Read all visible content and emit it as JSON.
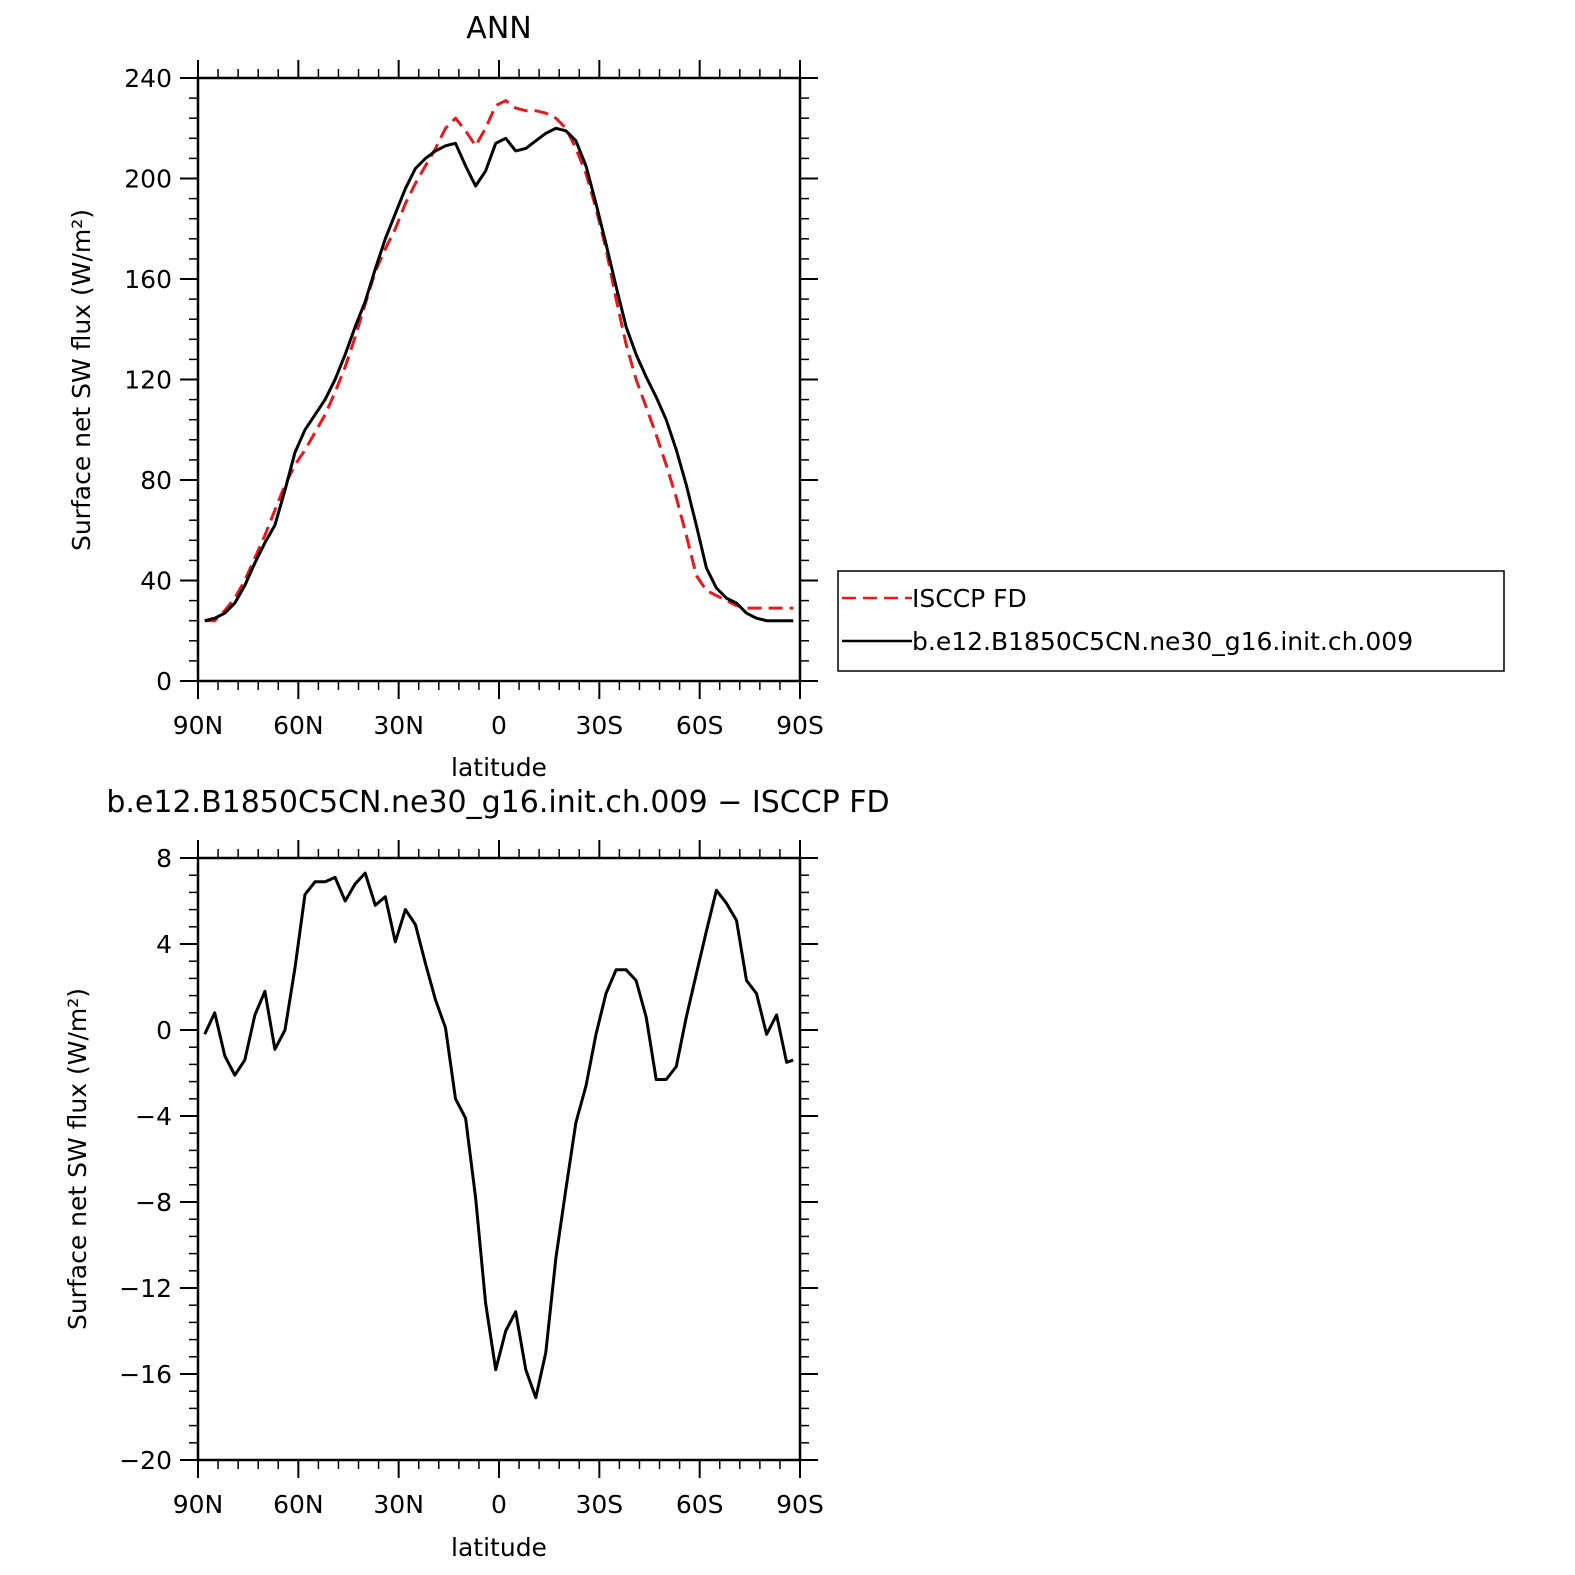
{
  "chart_data": [
    {
      "type": "line",
      "title": "ANN",
      "xlabel": "latitude",
      "ylabel": "Surface net SW flux (W/m²)",
      "xlim": [
        -90,
        90
      ],
      "ylim": [
        0,
        240
      ],
      "xticks": [
        -90,
        -60,
        -30,
        0,
        30,
        60,
        90
      ],
      "xtick_labels": [
        "90N",
        "60N",
        "30N",
        "0",
        "30S",
        "60S",
        "90S"
      ],
      "yticks": [
        0,
        40,
        80,
        120,
        160,
        200,
        240
      ],
      "ytick_labels": [
        "0",
        "40",
        "80",
        "120",
        "160",
        "200",
        "240"
      ],
      "legend_placement": "right",
      "grid": false,
      "x": [
        -88,
        -85,
        -82,
        -79,
        -76,
        -73,
        -70,
        -67,
        -64,
        -61,
        -58,
        -55,
        -52,
        -49,
        -46,
        -43,
        -40,
        -37,
        -34,
        -31,
        -28,
        -25,
        -22,
        -19,
        -16,
        -13,
        -10,
        -7,
        -4,
        -1,
        2,
        5,
        8,
        11,
        14,
        17,
        20,
        23,
        26,
        29,
        32,
        35,
        38,
        41,
        44,
        47,
        50,
        53,
        56,
        59,
        62,
        65,
        68,
        71,
        74,
        77,
        80,
        83,
        86,
        88
      ],
      "series": [
        {
          "name": "ISCCP FD",
          "color": "#e41a1c",
          "dash": "dashed",
          "values": [
            24,
            24,
            28,
            33,
            40,
            49,
            58,
            68,
            78,
            86,
            92,
            99,
            106,
            115,
            125,
            137,
            150,
            163,
            172,
            180,
            190,
            198,
            205,
            212,
            220,
            224,
            219,
            213,
            220,
            229,
            231,
            228,
            227,
            227,
            226,
            224,
            220,
            212,
            202,
            188,
            172,
            152,
            134,
            120,
            109,
            98,
            86,
            73,
            58,
            42,
            36,
            34,
            32,
            30,
            29,
            29,
            29,
            29,
            29,
            29
          ]
        },
        {
          "name": "b.e12.B1850C5CN.ne30_g16.init.ch.009",
          "color": "#000000",
          "dash": "solid",
          "values": [
            24,
            25,
            27,
            31,
            38,
            47,
            55,
            62,
            76,
            91,
            100,
            106,
            112,
            120,
            130,
            141,
            151,
            164,
            176,
            186,
            196,
            204,
            208,
            211,
            213,
            214,
            205,
            197,
            203,
            214,
            216,
            211,
            212,
            215,
            218,
            220,
            219,
            215,
            205,
            190,
            174,
            157,
            141,
            130,
            121,
            113,
            104,
            92,
            78,
            62,
            45,
            37,
            33,
            31,
            27,
            25,
            24,
            24,
            24,
            24
          ]
        }
      ]
    },
    {
      "type": "line",
      "title": "b.e12.B1850C5CN.ne30_g16.init.ch.009 − ISCCP FD",
      "xlabel": "latitude",
      "ylabel": "Surface net SW flux (W/m²)",
      "xlim": [
        -90,
        90
      ],
      "ylim": [
        -20,
        8
      ],
      "xticks": [
        -90,
        -60,
        -30,
        0,
        30,
        60,
        90
      ],
      "xtick_labels": [
        "90N",
        "60N",
        "30N",
        "0",
        "30S",
        "60S",
        "90S"
      ],
      "yticks": [
        -20,
        -16,
        -12,
        -8,
        -4,
        0,
        4,
        8
      ],
      "ytick_labels": [
        "−20",
        "−16",
        "−12",
        "−8",
        "−4",
        "0",
        "4",
        "8"
      ],
      "grid": false,
      "x": [
        -88,
        -85,
        -82,
        -79,
        -76,
        -73,
        -70,
        -67,
        -64,
        -61,
        -58,
        -55,
        -52,
        -49,
        -46,
        -43,
        -40,
        -37,
        -34,
        -31,
        -28,
        -25,
        -22,
        -19,
        -16,
        -13,
        -10,
        -7,
        -4,
        -1,
        2,
        5,
        8,
        11,
        14,
        17,
        20,
        23,
        26,
        29,
        32,
        35,
        38,
        41,
        44,
        47,
        50,
        53,
        56,
        59,
        62,
        65,
        68,
        71,
        74,
        77,
        80,
        83,
        86,
        88
      ],
      "series": [
        {
          "color": "#000000",
          "dash": "solid",
          "values": [
            -0.2,
            0.8,
            -1.2,
            -2.1,
            -1.4,
            0.7,
            1.8,
            -0.9,
            0.0,
            2.9,
            6.3,
            6.9,
            6.9,
            7.1,
            6.0,
            6.8,
            7.3,
            5.8,
            6.2,
            4.1,
            5.6,
            4.9,
            3.1,
            1.4,
            0.1,
            -3.2,
            -4.1,
            -7.8,
            -12.7,
            -15.8,
            -14.0,
            -13.1,
            -15.8,
            -17.1,
            -15.0,
            -10.6,
            -7.4,
            -4.3,
            -2.6,
            -0.2,
            1.7,
            2.8,
            2.8,
            2.3,
            0.6,
            -2.3,
            -2.3,
            -1.7,
            0.6,
            2.6,
            4.6,
            6.5,
            5.9,
            5.1,
            2.3,
            1.7,
            -0.2,
            0.7,
            -1.5,
            -1.4
          ]
        }
      ]
    }
  ],
  "extra_tail_note": ""
}
